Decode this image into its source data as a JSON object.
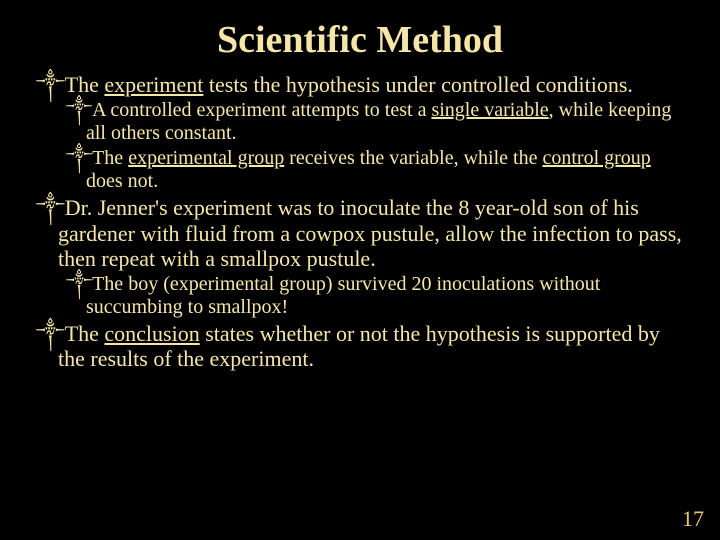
{
  "title": "Scientific Method",
  "bullets": [
    {
      "level": 1,
      "runs": [
        {
          "t": "The "
        },
        {
          "t": "experiment",
          "u": true
        },
        {
          "t": " tests the hypothesis under controlled conditions."
        }
      ]
    },
    {
      "level": 2,
      "runs": [
        {
          "t": "A controlled experiment attempts to test a "
        },
        {
          "t": "single variable",
          "u": true
        },
        {
          "t": ", while keeping all others constant."
        }
      ]
    },
    {
      "level": 2,
      "runs": [
        {
          "t": "The "
        },
        {
          "t": "experimental group",
          "u": true
        },
        {
          "t": " receives the variable, while the "
        },
        {
          "t": "control group",
          "u": true
        },
        {
          "t": " does not."
        }
      ]
    },
    {
      "level": 1,
      "runs": [
        {
          "t": "Dr. Jenner's experiment was to inoculate the 8 year-old son of his gardener with fluid from a cowpox pustule, allow the infection to pass, then repeat with a smallpox pustule."
        }
      ]
    },
    {
      "level": 2,
      "runs": [
        {
          "t": "The boy (experimental group) survived 20 inoculations without succumbing to smallpox!"
        }
      ]
    },
    {
      "level": 1,
      "runs": [
        {
          "t": "The "
        },
        {
          "t": "conclusion",
          "u": true
        },
        {
          "t": " states whether or not the hypothesis is supported by the results of the experiment."
        }
      ]
    }
  ],
  "bullet_glyph": "༒",
  "page_number": "17",
  "colors": {
    "background": "#000000",
    "text": "#f5e6a8",
    "pagenum": "#e8c968"
  },
  "fonts": {
    "title_size": 38,
    "l1_size": 22,
    "l2_size": 20
  }
}
